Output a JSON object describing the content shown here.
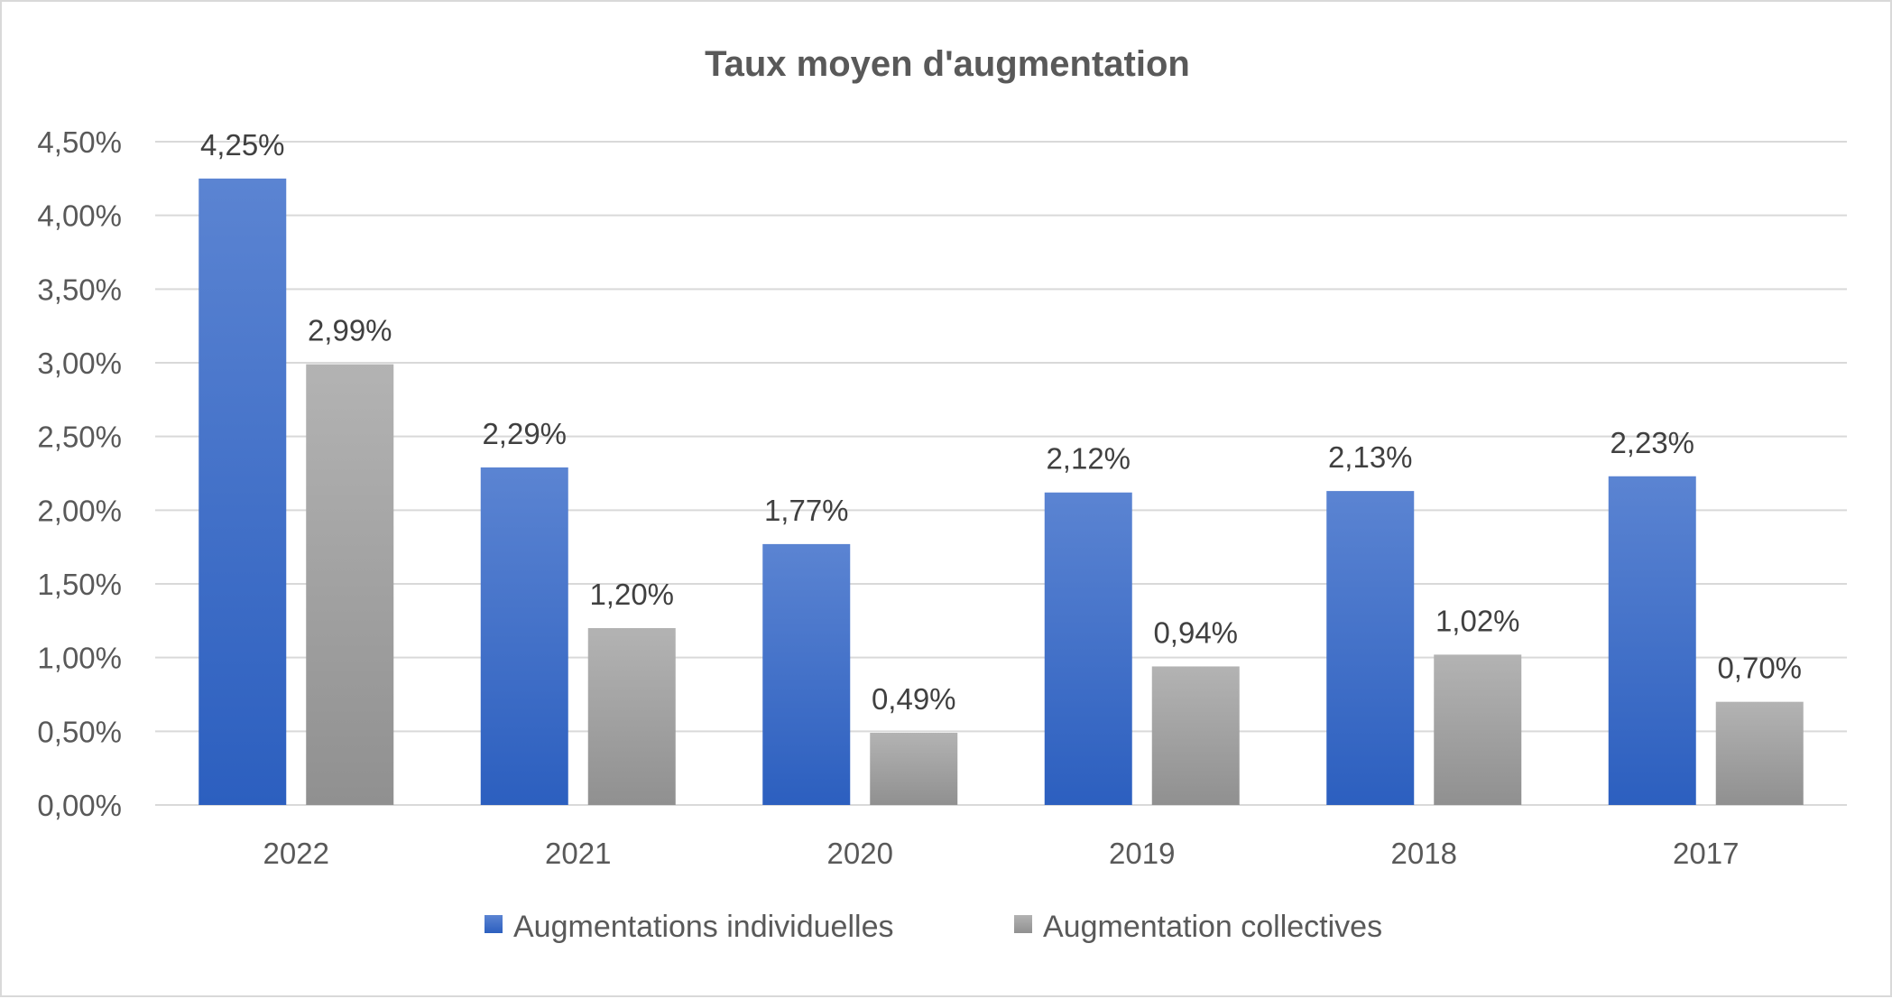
{
  "chart_data": {
    "type": "bar",
    "title": "Taux moyen d'augmentation",
    "xlabel": "",
    "ylabel": "",
    "categories": [
      "2022",
      "2021",
      "2020",
      "2019",
      "2018",
      "2017"
    ],
    "series": [
      {
        "name": "Augmentations individuelles",
        "values": [
          4.25,
          2.29,
          1.77,
          2.12,
          2.13,
          2.23
        ],
        "labels": [
          "4,25%",
          "2,29%",
          "1,77%",
          "2,12%",
          "2,13%",
          "2,23%"
        ],
        "color_top": "#5b84d2",
        "color_bottom": "#2c5fbf"
      },
      {
        "name": "Augmentation collectives",
        "values": [
          2.99,
          1.2,
          0.49,
          0.94,
          1.02,
          0.7
        ],
        "labels": [
          "2,99%",
          "1,20%",
          "0,49%",
          "0,94%",
          "1,02%",
          "0,70%"
        ],
        "color_top": "#b3b3b3",
        "color_bottom": "#909090"
      }
    ],
    "ylim": [
      0,
      4.5
    ],
    "yticks": [
      0,
      0.5,
      1,
      1.5,
      2,
      2.5,
      3,
      3.5,
      4,
      4.5
    ],
    "ytick_labels": [
      "0,00%",
      "0,50%",
      "1,00%",
      "1,50%",
      "2,00%",
      "2,50%",
      "3,00%",
      "3,50%",
      "4,00%",
      "4,50%"
    ],
    "grid": true,
    "legend_position": "bottom",
    "background": "#ffffff"
  }
}
